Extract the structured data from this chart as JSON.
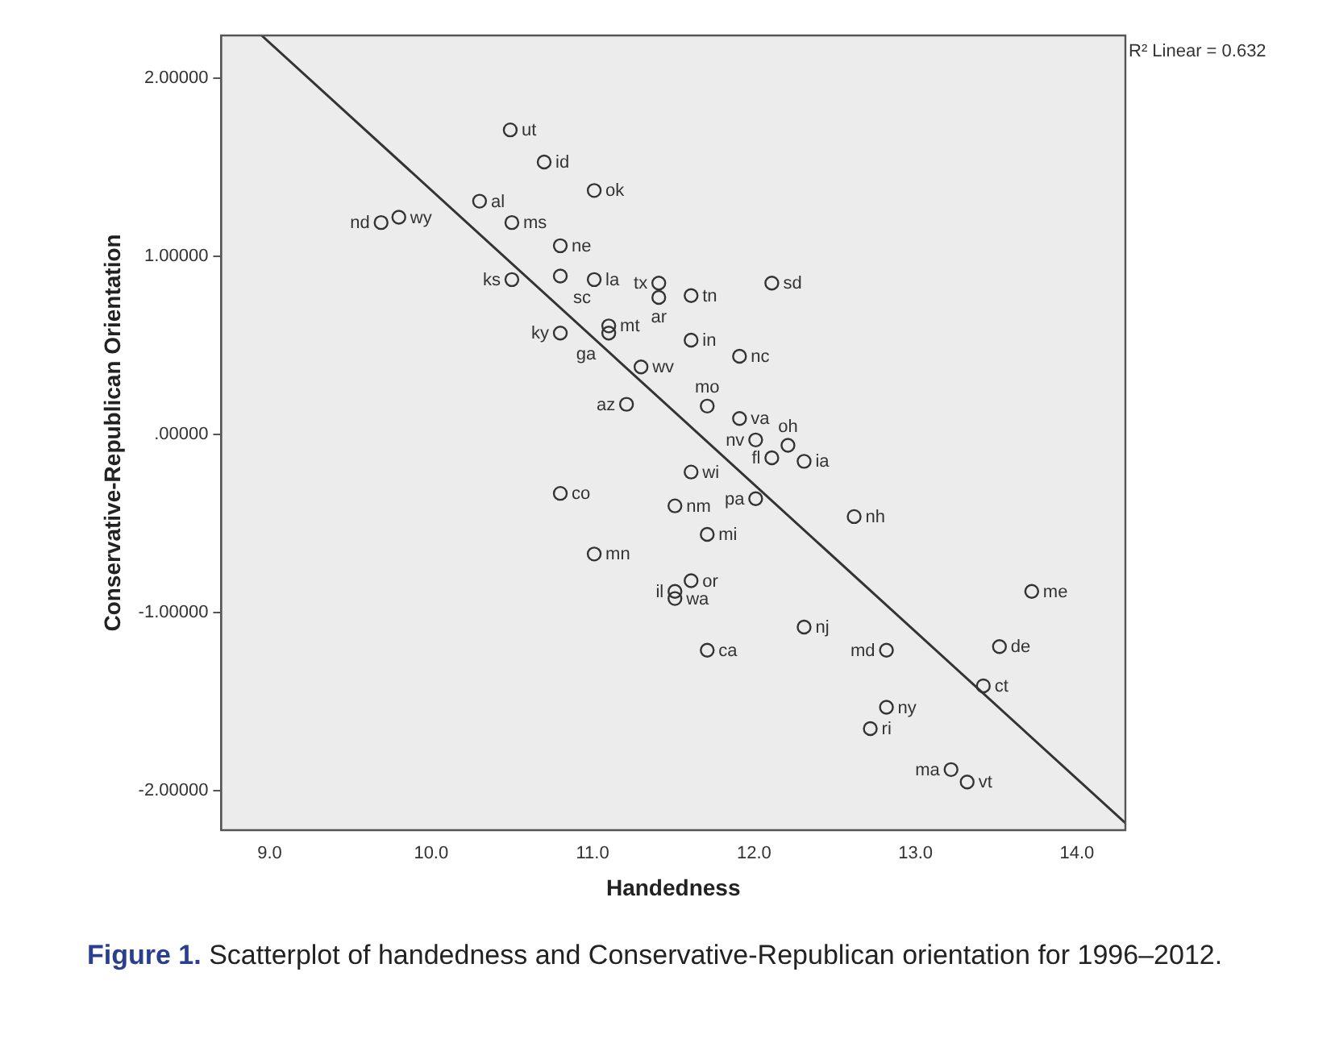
{
  "chart_data": {
    "type": "scatter",
    "xlabel": "Handedness",
    "ylabel": "Conservative-Republican Orientation",
    "xlim": [
      8.7,
      14.3
    ],
    "ylim": [
      -2.22,
      2.24
    ],
    "xticks": [
      {
        "value": 9,
        "label": "9.0"
      },
      {
        "value": 10,
        "label": "10.0"
      },
      {
        "value": 11,
        "label": "11.0"
      },
      {
        "value": 12,
        "label": "12.0"
      },
      {
        "value": 13,
        "label": "13.0"
      },
      {
        "value": 14,
        "label": "14.0"
      }
    ],
    "yticks": [
      {
        "value": -2,
        "label": "-2.00000"
      },
      {
        "value": -1,
        "label": "-1.00000"
      },
      {
        "value": 0,
        "label": ".00000"
      },
      {
        "value": 1,
        "label": "1.00000"
      },
      {
        "value": 2,
        "label": "2.00000"
      }
    ],
    "grid": false,
    "legend": false,
    "series": [
      {
        "color": "#333333",
        "marker": "circle",
        "x": [
          10.49,
          10.7,
          11.01,
          10.3,
          9.69,
          9.8,
          10.5,
          10.8,
          10.8,
          11.01,
          10.5,
          11.41,
          11.41,
          11.61,
          12.11,
          11.61,
          10.8,
          11.1,
          11.1,
          11.3,
          11.91,
          11.21,
          11.71,
          11.91,
          12.01,
          12.21,
          12.31,
          12.11,
          12.01,
          11.61,
          10.8,
          11.51,
          11.71,
          11.01,
          11.61,
          11.51,
          11.51,
          11.71,
          12.31,
          12.62,
          12.82,
          13.72,
          13.52,
          13.42,
          12.82,
          12.72,
          13.22,
          13.32
        ],
        "values": [
          1.71,
          1.53,
          1.37,
          1.31,
          1.19,
          1.22,
          1.19,
          1.06,
          0.89,
          0.87,
          0.87,
          0.85,
          0.77,
          0.78,
          0.85,
          0.53,
          0.57,
          0.61,
          0.57,
          0.38,
          0.44,
          0.17,
          0.16,
          0.09,
          -0.03,
          -0.06,
          -0.15,
          -0.13,
          -0.36,
          -0.21,
          -0.33,
          -0.4,
          -0.56,
          -0.67,
          -0.82,
          -0.88,
          -0.92,
          -1.21,
          -1.08,
          -0.46,
          -1.21,
          -0.88,
          -1.19,
          -1.41,
          -1.53,
          -1.65,
          -1.88,
          -1.95
        ],
        "value_labels": [
          "ut",
          "id",
          "ok",
          "al",
          "nd",
          "wy",
          "ms",
          "ne",
          "sc",
          "la",
          "ks",
          "tx",
          "ar",
          "tn",
          "sd",
          "in",
          "ky",
          "mt",
          "ga",
          "wv",
          "nc",
          "az",
          "mo",
          "va",
          "nv",
          "oh",
          "ia",
          "fl",
          "pa",
          "wi",
          "co",
          "nm",
          "mi",
          "mn",
          "or",
          "il",
          "wa",
          "ca",
          "nj",
          "nh",
          "md",
          "me",
          "de",
          "ct",
          "ny",
          "ri",
          "ma",
          "vt"
        ]
      },
      {
        "type": "line",
        "color": "#333333",
        "marker": "none",
        "x": [
          8.95,
          14.3
        ],
        "values": [
          2.24,
          -2.18
        ]
      }
    ],
    "annotations": [
      "R² Linear = 0.632",
      "Figure 1.",
      "Scatterplot of handedness and Conservative-Republican orientation for 1996–2012."
    ]
  }
}
